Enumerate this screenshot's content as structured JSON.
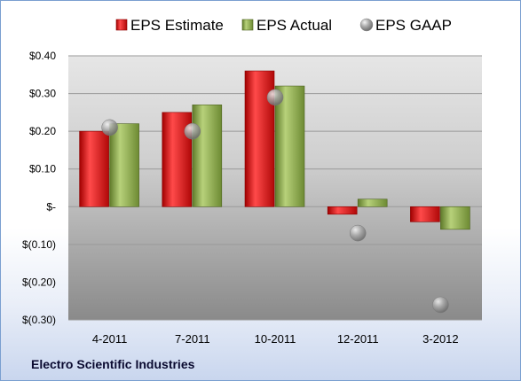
{
  "company": "Electro Scientific Industries",
  "chart_data": {
    "type": "bar",
    "categories": [
      "4-2011",
      "7-2011",
      "10-2011",
      "12-2011",
      "3-2012"
    ],
    "series": [
      {
        "name": "EPS Estimate",
        "kind": "bar",
        "color": "#d42020",
        "values": [
          0.2,
          0.25,
          0.36,
          -0.02,
          -0.04
        ]
      },
      {
        "name": "EPS Actual",
        "kind": "bar",
        "color": "#8aa84a",
        "values": [
          0.22,
          0.27,
          0.32,
          0.02,
          -0.06
        ]
      },
      {
        "name": "EPS GAAP",
        "kind": "point",
        "color": "#a0a0a0",
        "values": [
          0.21,
          0.2,
          0.29,
          -0.07,
          -0.26
        ]
      }
    ],
    "yticks": [
      0.4,
      0.3,
      0.2,
      0.1,
      0,
      -0.1,
      -0.2,
      -0.3
    ],
    "ytick_labels": [
      "$0.40",
      "$0.30",
      "$0.20",
      "$0.10",
      "$-",
      "$(0.10)",
      "$(0.20)",
      "$(0.30)"
    ],
    "ylim": [
      -0.3,
      0.4
    ],
    "legend_position": "top",
    "grid": true
  }
}
